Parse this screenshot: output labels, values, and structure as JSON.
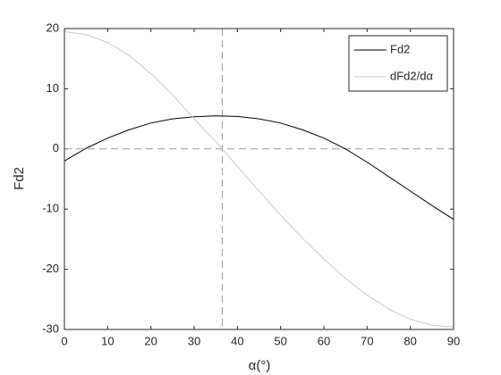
{
  "chart_data": {
    "type": "line",
    "x": [
      0,
      5,
      10,
      15,
      20,
      25,
      30,
      35,
      40,
      45,
      50,
      55,
      60,
      65,
      70,
      75,
      80,
      85,
      90
    ],
    "series": [
      {
        "name": "Fd2",
        "color": "#000000",
        "values": [
          -2,
          0.1,
          1.8,
          3.2,
          4.3,
          5.0,
          5.35,
          5.5,
          5.4,
          5.0,
          4.3,
          3.2,
          1.8,
          0,
          -2.2,
          -4.6,
          -7.0,
          -9.4,
          -11.7
        ]
      },
      {
        "name": "dFd2/dα",
        "color": "#c8c8c8",
        "values": [
          19.5,
          19,
          17.7,
          15.5,
          12.5,
          9,
          5,
          1.2,
          -2.9,
          -7,
          -11,
          -14.8,
          -18.3,
          -21.5,
          -24.3,
          -26.6,
          -28.3,
          -29.3,
          -29.6
        ]
      }
    ],
    "xlabel": "α(°)",
    "ylabel": "Fd2",
    "xlim": [
      0,
      90
    ],
    "xticks": [
      0,
      10,
      20,
      30,
      40,
      50,
      60,
      70,
      80,
      90
    ],
    "ylim": [
      -30,
      20
    ],
    "yticks": [
      -30,
      -20,
      -10,
      0,
      10,
      20
    ],
    "hline": 0,
    "vline": 36.5,
    "legend": "top-right"
  }
}
